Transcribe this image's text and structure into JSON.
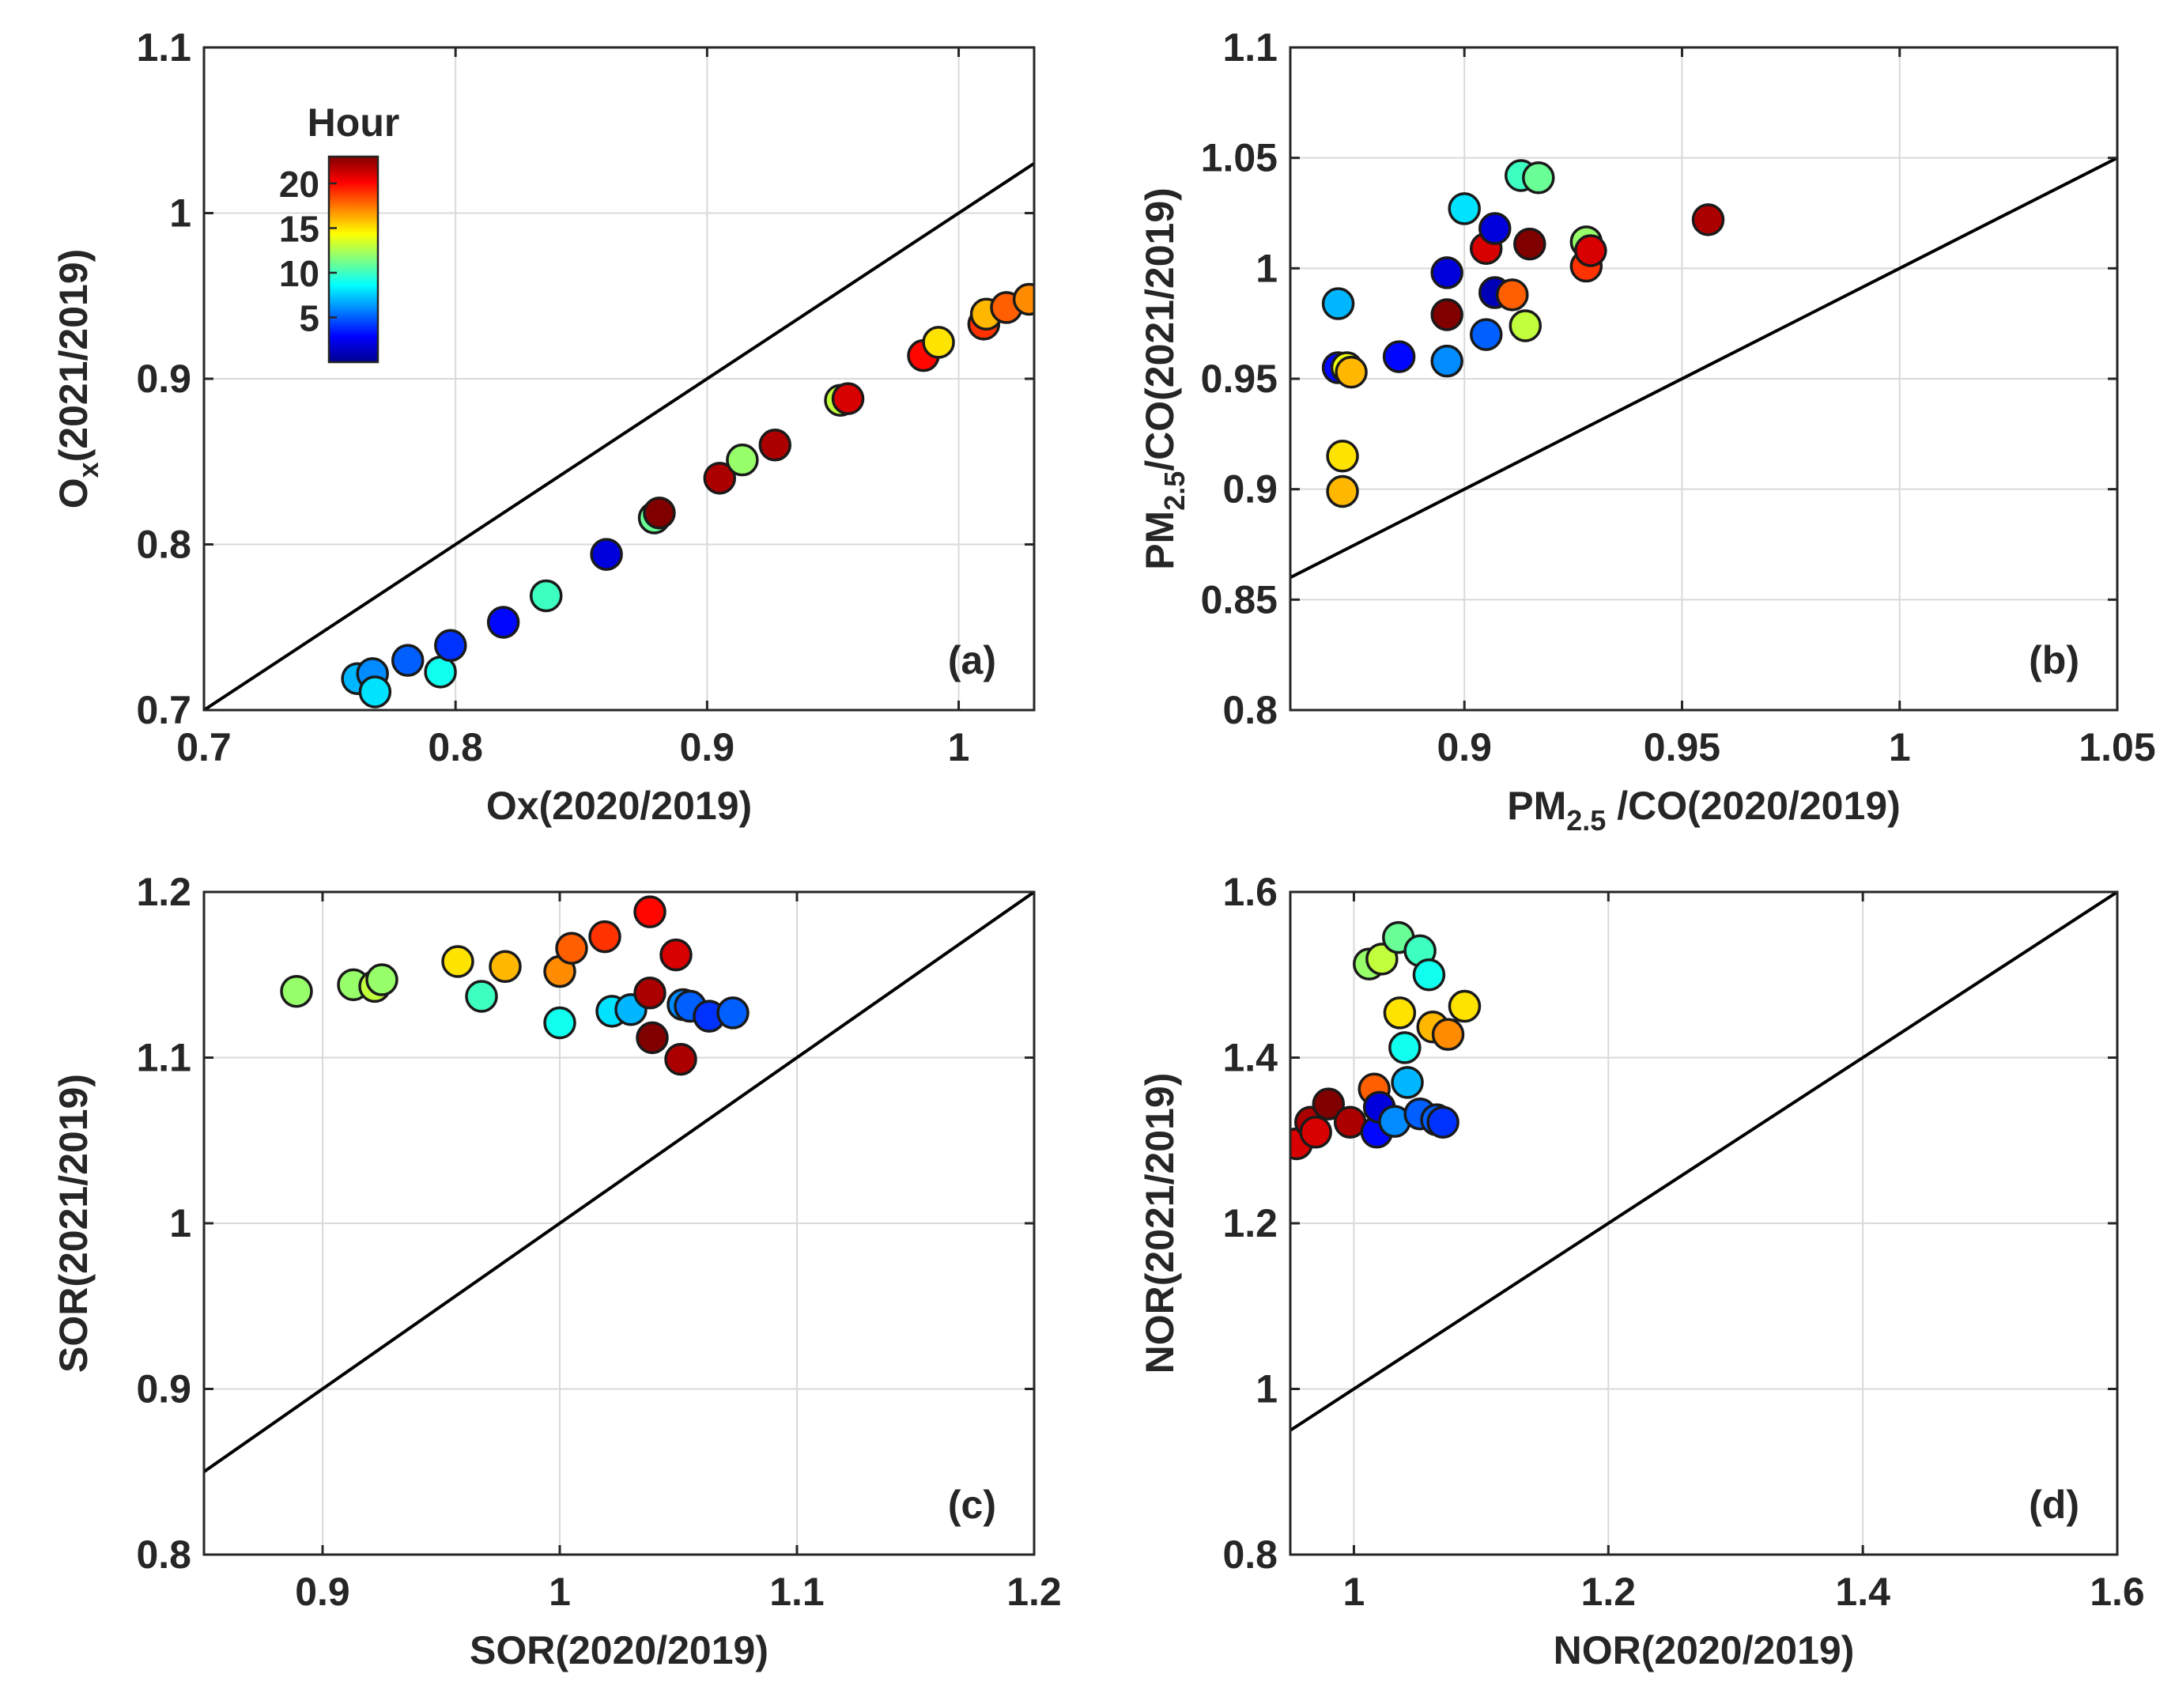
{
  "colorbar": {
    "title": "Hour",
    "ticks": [
      5,
      10,
      15,
      20
    ],
    "tick_labels": [
      "5",
      "10",
      "15",
      "20"
    ],
    "range": [
      0,
      23
    ],
    "colormap": [
      "#00008f",
      "#0000ff",
      "#0080ff",
      "#00ffff",
      "#80ff80",
      "#ffff00",
      "#ff8000",
      "#ff0000",
      "#800000"
    ]
  },
  "chart_data": [
    {
      "type": "scatter",
      "id": "a",
      "panel_label": "(a)",
      "xlabel": {
        "main": "Ox(2020/2019)"
      },
      "ylabel": {
        "main": "O",
        "sub": "x",
        "tail": "(2021/2019)"
      },
      "xlim": [
        0.7,
        1.03
      ],
      "ylim": [
        0.7,
        1.1
      ],
      "xticks": [
        0.7,
        0.8,
        0.9,
        1
      ],
      "xtick_labels": [
        "0.7",
        "0.8",
        "0.9",
        "1"
      ],
      "yticks": [
        0.7,
        0.8,
        0.9,
        1,
        1.1
      ],
      "ytick_labels": [
        "0.7",
        "0.8",
        "0.9",
        "1",
        "1.1"
      ],
      "reference_line": [
        [
          0.7,
          0.7
        ],
        [
          1.03,
          1.03
        ]
      ],
      "points": [
        {
          "x": 0.761,
          "y": 0.719,
          "hour": 7
        },
        {
          "x": 0.767,
          "y": 0.722,
          "hour": 6
        },
        {
          "x": 0.768,
          "y": 0.711,
          "hour": 8
        },
        {
          "x": 0.781,
          "y": 0.73,
          "hour": 5
        },
        {
          "x": 0.794,
          "y": 0.723,
          "hour": 9
        },
        {
          "x": 0.798,
          "y": 0.739,
          "hour": 4
        },
        {
          "x": 0.819,
          "y": 0.753,
          "hour": 3
        },
        {
          "x": 0.836,
          "y": 0.769,
          "hour": 10
        },
        {
          "x": 0.86,
          "y": 0.794,
          "hour": 2
        },
        {
          "x": 0.879,
          "y": 0.816,
          "hour": 11
        },
        {
          "x": 0.881,
          "y": 0.819,
          "hour": 23
        },
        {
          "x": 0.905,
          "y": 0.84,
          "hour": 22
        },
        {
          "x": 0.914,
          "y": 0.851,
          "hour": 12
        },
        {
          "x": 0.927,
          "y": 0.86,
          "hour": 22
        },
        {
          "x": 0.953,
          "y": 0.887,
          "hour": 13
        },
        {
          "x": 0.956,
          "y": 0.888,
          "hour": 21
        },
        {
          "x": 0.986,
          "y": 0.914,
          "hour": 20
        },
        {
          "x": 0.992,
          "y": 0.922,
          "hour": 15
        },
        {
          "x": 1.01,
          "y": 0.933,
          "hour": 19
        },
        {
          "x": 1.011,
          "y": 0.939,
          "hour": 16
        },
        {
          "x": 1.019,
          "y": 0.943,
          "hour": 18
        },
        {
          "x": 1.028,
          "y": 0.948,
          "hour": 17
        }
      ]
    },
    {
      "type": "scatter",
      "id": "b",
      "panel_label": "(b)",
      "xlabel": {
        "main": "PM",
        "sub": "2.5",
        "tail": " /CO(2020/2019)"
      },
      "ylabel": {
        "main": "PM",
        "sub": "2.5",
        "tail": "/CO(2021/2019)"
      },
      "xlim": [
        0.86,
        1.05
      ],
      "ylim": [
        0.8,
        1.1
      ],
      "xticks": [
        0.9,
        0.95,
        1,
        1.05
      ],
      "xtick_labels": [
        "0.9",
        "0.95",
        "1",
        "1.05"
      ],
      "yticks": [
        0.8,
        0.85,
        0.9,
        0.95,
        1,
        1.05,
        1.1
      ],
      "ytick_labels": [
        "0.8",
        "0.85",
        "0.9",
        "0.95",
        "1",
        "1.05",
        "1.1"
      ],
      "reference_line": [
        [
          0.86,
          0.86
        ],
        [
          1.05,
          1.05
        ]
      ],
      "points": [
        {
          "x": 0.871,
          "y": 0.984,
          "hour": 7
        },
        {
          "x": 0.871,
          "y": 0.955,
          "hour": 3
        },
        {
          "x": 0.873,
          "y": 0.955,
          "hour": 14
        },
        {
          "x": 0.874,
          "y": 0.953,
          "hour": 16
        },
        {
          "x": 0.872,
          "y": 0.915,
          "hour": 15
        },
        {
          "x": 0.872,
          "y": 0.899,
          "hour": 16
        },
        {
          "x": 0.885,
          "y": 0.96,
          "hour": 3
        },
        {
          "x": 0.896,
          "y": 0.998,
          "hour": 2
        },
        {
          "x": 0.896,
          "y": 0.979,
          "hour": 23
        },
        {
          "x": 0.896,
          "y": 0.958,
          "hour": 6
        },
        {
          "x": 0.9,
          "y": 1.027,
          "hour": 8
        },
        {
          "x": 0.905,
          "y": 1.009,
          "hour": 21
        },
        {
          "x": 0.905,
          "y": 0.97,
          "hour": 5
        },
        {
          "x": 0.907,
          "y": 1.018,
          "hour": 2
        },
        {
          "x": 0.907,
          "y": 0.989,
          "hour": 1
        },
        {
          "x": 0.911,
          "y": 0.988,
          "hour": 18
        },
        {
          "x": 0.913,
          "y": 1.042,
          "hour": 10
        },
        {
          "x": 0.914,
          "y": 0.974,
          "hour": 13
        },
        {
          "x": 0.915,
          "y": 1.011,
          "hour": 23
        },
        {
          "x": 0.917,
          "y": 1.041,
          "hour": 11
        },
        {
          "x": 0.928,
          "y": 1.012,
          "hour": 12
        },
        {
          "x": 0.928,
          "y": 1.001,
          "hour": 19
        },
        {
          "x": 0.929,
          "y": 1.008,
          "hour": 21
        },
        {
          "x": 0.956,
          "y": 1.022,
          "hour": 22
        }
      ]
    },
    {
      "type": "scatter",
      "id": "c",
      "panel_label": "(c)",
      "xlabel": {
        "main": "SOR(2020/2019)"
      },
      "ylabel": {
        "main": "SOR(2021/2019)"
      },
      "xlim": [
        0.85,
        1.2
      ],
      "ylim": [
        0.8,
        1.2
      ],
      "xticks": [
        0.9,
        1,
        1.1,
        1.2
      ],
      "xtick_labels": [
        "0.9",
        "1",
        "1.1",
        "1.2"
      ],
      "yticks": [
        0.8,
        0.9,
        1,
        1.1,
        1.2
      ],
      "ytick_labels": [
        "0.8",
        "0.9",
        "1",
        "1.1",
        "1.2"
      ],
      "reference_line": [
        [
          0.85,
          0.85
        ],
        [
          1.2,
          1.2
        ]
      ],
      "points": [
        {
          "x": 0.889,
          "y": 1.14,
          "hour": 12
        },
        {
          "x": 0.913,
          "y": 1.144,
          "hour": 12
        },
        {
          "x": 0.922,
          "y": 1.143,
          "hour": 13
        },
        {
          "x": 0.925,
          "y": 1.147,
          "hour": 12
        },
        {
          "x": 0.957,
          "y": 1.158,
          "hour": 15
        },
        {
          "x": 0.967,
          "y": 1.137,
          "hour": 10
        },
        {
          "x": 0.977,
          "y": 1.155,
          "hour": 16
        },
        {
          "x": 1.0,
          "y": 1.152,
          "hour": 17
        },
        {
          "x": 1.005,
          "y": 1.166,
          "hour": 18
        },
        {
          "x": 1.0,
          "y": 1.121,
          "hour": 9
        },
        {
          "x": 1.019,
          "y": 1.173,
          "hour": 19
        },
        {
          "x": 1.022,
          "y": 1.128,
          "hour": 8
        },
        {
          "x": 1.03,
          "y": 1.129,
          "hour": 7
        },
        {
          "x": 1.038,
          "y": 1.188,
          "hour": 20
        },
        {
          "x": 1.038,
          "y": 1.139,
          "hour": 22
        },
        {
          "x": 1.039,
          "y": 1.112,
          "hour": 23
        },
        {
          "x": 1.049,
          "y": 1.162,
          "hour": 21
        },
        {
          "x": 1.051,
          "y": 1.099,
          "hour": 22
        },
        {
          "x": 1.052,
          "y": 1.132,
          "hour": 6
        },
        {
          "x": 1.055,
          "y": 1.131,
          "hour": 5
        },
        {
          "x": 1.063,
          "y": 1.125,
          "hour": 4
        },
        {
          "x": 1.073,
          "y": 1.127,
          "hour": 5
        }
      ]
    },
    {
      "type": "scatter",
      "id": "d",
      "panel_label": "(d)",
      "xlabel": {
        "main": "NOR(2020/2019)"
      },
      "ylabel": {
        "main": "NOR(2021/2019)"
      },
      "xlim": [
        0.95,
        1.6
      ],
      "ylim": [
        0.8,
        1.6
      ],
      "xticks": [
        1,
        1.2,
        1.4,
        1.6
      ],
      "xtick_labels": [
        "1",
        "1.2",
        "1.4",
        "1.6"
      ],
      "yticks": [
        0.8,
        1,
        1.2,
        1.4,
        1.6
      ],
      "ytick_labels": [
        "0.8",
        "1",
        "1.2",
        "1.4",
        "1.6"
      ],
      "reference_line": [
        [
          0.95,
          0.95
        ],
        [
          1.6,
          1.6
        ]
      ],
      "points": [
        {
          "x": 0.955,
          "y": 1.296,
          "hour": 21
        },
        {
          "x": 0.966,
          "y": 1.322,
          "hour": 22
        },
        {
          "x": 0.97,
          "y": 1.31,
          "hour": 21
        },
        {
          "x": 0.98,
          "y": 1.344,
          "hour": 23
        },
        {
          "x": 0.997,
          "y": 1.322,
          "hour": 22
        },
        {
          "x": 1.012,
          "y": 1.513,
          "hour": 12
        },
        {
          "x": 1.016,
          "y": 1.362,
          "hour": 18
        },
        {
          "x": 1.018,
          "y": 1.31,
          "hour": 3
        },
        {
          "x": 1.02,
          "y": 1.34,
          "hour": 2
        },
        {
          "x": 1.022,
          "y": 1.519,
          "hour": 13
        },
        {
          "x": 1.032,
          "y": 1.323,
          "hour": 6
        },
        {
          "x": 1.035,
          "y": 1.545,
          "hour": 11
        },
        {
          "x": 1.036,
          "y": 1.454,
          "hour": 15
        },
        {
          "x": 1.04,
          "y": 1.412,
          "hour": 9
        },
        {
          "x": 1.042,
          "y": 1.37,
          "hour": 7
        },
        {
          "x": 1.052,
          "y": 1.529,
          "hour": 10
        },
        {
          "x": 1.052,
          "y": 1.332,
          "hour": 5
        },
        {
          "x": 1.059,
          "y": 1.5,
          "hour": 9
        },
        {
          "x": 1.062,
          "y": 1.437,
          "hour": 16
        },
        {
          "x": 1.065,
          "y": 1.325,
          "hour": 5
        },
        {
          "x": 1.07,
          "y": 1.322,
          "hour": 4
        },
        {
          "x": 1.074,
          "y": 1.428,
          "hour": 17
        },
        {
          "x": 1.087,
          "y": 1.462,
          "hour": 15
        }
      ]
    }
  ]
}
